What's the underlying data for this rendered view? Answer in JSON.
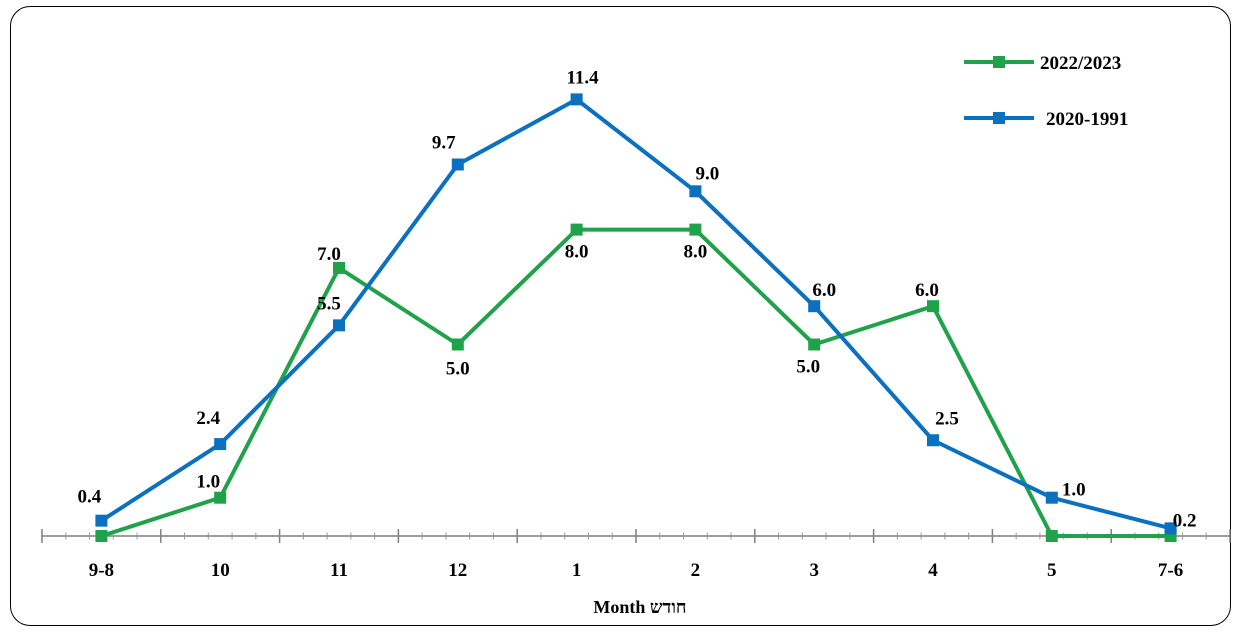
{
  "chart_data": {
    "type": "line",
    "categories": [
      "9-8",
      "10",
      "11",
      "12",
      "1",
      "2",
      "3",
      "4",
      "5",
      "7-6"
    ],
    "series": [
      {
        "name": "2022/2023",
        "color": "#1fa24a",
        "values": [
          0,
          1.0,
          7.0,
          5.0,
          8.0,
          8.0,
          5.0,
          6.0,
          0,
          0
        ],
        "labels": [
          "",
          "1.0",
          "7.0",
          "5.0",
          "8.0",
          "8.0",
          "5.0",
          "6.0",
          "",
          ""
        ]
      },
      {
        "name": "2020-1991",
        "color": "#0a70bf",
        "values": [
          0.4,
          2.4,
          5.5,
          9.7,
          11.4,
          9.0,
          6.0,
          2.5,
          1.0,
          0.2
        ],
        "labels": [
          "0.4",
          "2.4",
          "5.5",
          "9.7",
          "11.4",
          "9.0",
          "6.0",
          "2.5",
          "1.0",
          "0.2"
        ]
      }
    ],
    "xlabel": "Month חודש",
    "ylabel": "",
    "ylim": [
      0,
      12
    ],
    "grid": false,
    "legend": "top-right"
  }
}
